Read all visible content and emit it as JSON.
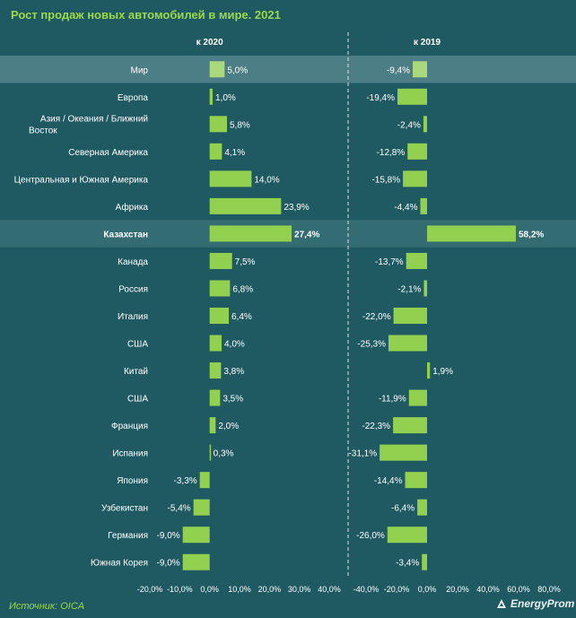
{
  "title": "Рост продаж новых автомобилей в мире. 2021",
  "source": "Источник: OICA",
  "logo_text": "EnergyProm",
  "colors": {
    "background": "#1f5a63",
    "bar": "#92d050",
    "bar_highlight": "#a9d97a",
    "highlight_row": "#4c7e85",
    "kazakhstan_row": "#346c73",
    "text": "#ffffff",
    "title": "#9ad94a"
  },
  "chart_data": [
    {
      "type": "bar",
      "orientation": "horizontal",
      "title": "к 2020",
      "categories": [
        "Мир",
        "Европа",
        "Азия / Океания / Ближний Восток",
        "Северная Америка",
        "Центральная и Южная Америка",
        "Африка",
        "Казахстан",
        "Канада",
        "Россия",
        "Италия",
        "США",
        "Китай",
        "США",
        "Франция",
        "Испания",
        "Япония",
        "Узбекистан",
        "Германия",
        "Южная Корея"
      ],
      "values": [
        5.0,
        1.0,
        5.8,
        4.1,
        14.0,
        23.9,
        27.4,
        7.5,
        6.8,
        6.4,
        4.0,
        3.8,
        3.5,
        2.0,
        0.3,
        -3.3,
        -5.4,
        -9.0,
        -9.0
      ],
      "labels": [
        "5,0%",
        "1,0%",
        "5,8%",
        "4,1%",
        "14,0%",
        "23,9%",
        "27,4%",
        "7,5%",
        "6,8%",
        "6,4%",
        "4,0%",
        "3,8%",
        "3,5%",
        "2,0%",
        "0,3%",
        "-3,3%",
        "-5,4%",
        "-9,0%",
        "-9,0%"
      ],
      "xlim": [
        -20,
        40
      ],
      "xticks": [
        "-20,0%",
        "-10,0%",
        "0,0%",
        "10,0%",
        "20,0%",
        "30,0%",
        "40,0%"
      ],
      "grid": false
    },
    {
      "type": "bar",
      "orientation": "horizontal",
      "title": "к 2019",
      "categories": [
        "Мир",
        "Европа",
        "Азия / Океания / Ближний Восток",
        "Северная Америка",
        "Центральная и Южная Америка",
        "Африка",
        "Казахстан",
        "Канада",
        "Россия",
        "Италия",
        "США",
        "Китай",
        "США",
        "Франция",
        "Испания",
        "Япония",
        "Узбекистан",
        "Германия",
        "Южная Корея"
      ],
      "values": [
        -9.4,
        -19.4,
        -2.4,
        -12.8,
        -15.8,
        -4.4,
        58.2,
        -13.7,
        -2.1,
        -22.0,
        -25.3,
        1.9,
        -11.9,
        -22.3,
        -31.1,
        -14.4,
        -6.4,
        -26.0,
        -3.4
      ],
      "labels": [
        "-9,4%",
        "-19,4%",
        "-2,4%",
        "-12,8%",
        "-15,8%",
        "-4,4%",
        "58,2%",
        "-13,7%",
        "-2,1%",
        "-22,0%",
        "-25,3%",
        "1,9%",
        "-11,9%",
        "-22,3%",
        "-31,1%",
        "-14,4%",
        "-6,4%",
        "-26,0%",
        "-3,4%"
      ],
      "xlim": [
        -40,
        80
      ],
      "xticks": [
        "-40,0%",
        "-20,0%",
        "0,0%",
        "20,0%",
        "40,0%",
        "60,0%",
        "80,0%"
      ],
      "grid": false
    }
  ]
}
